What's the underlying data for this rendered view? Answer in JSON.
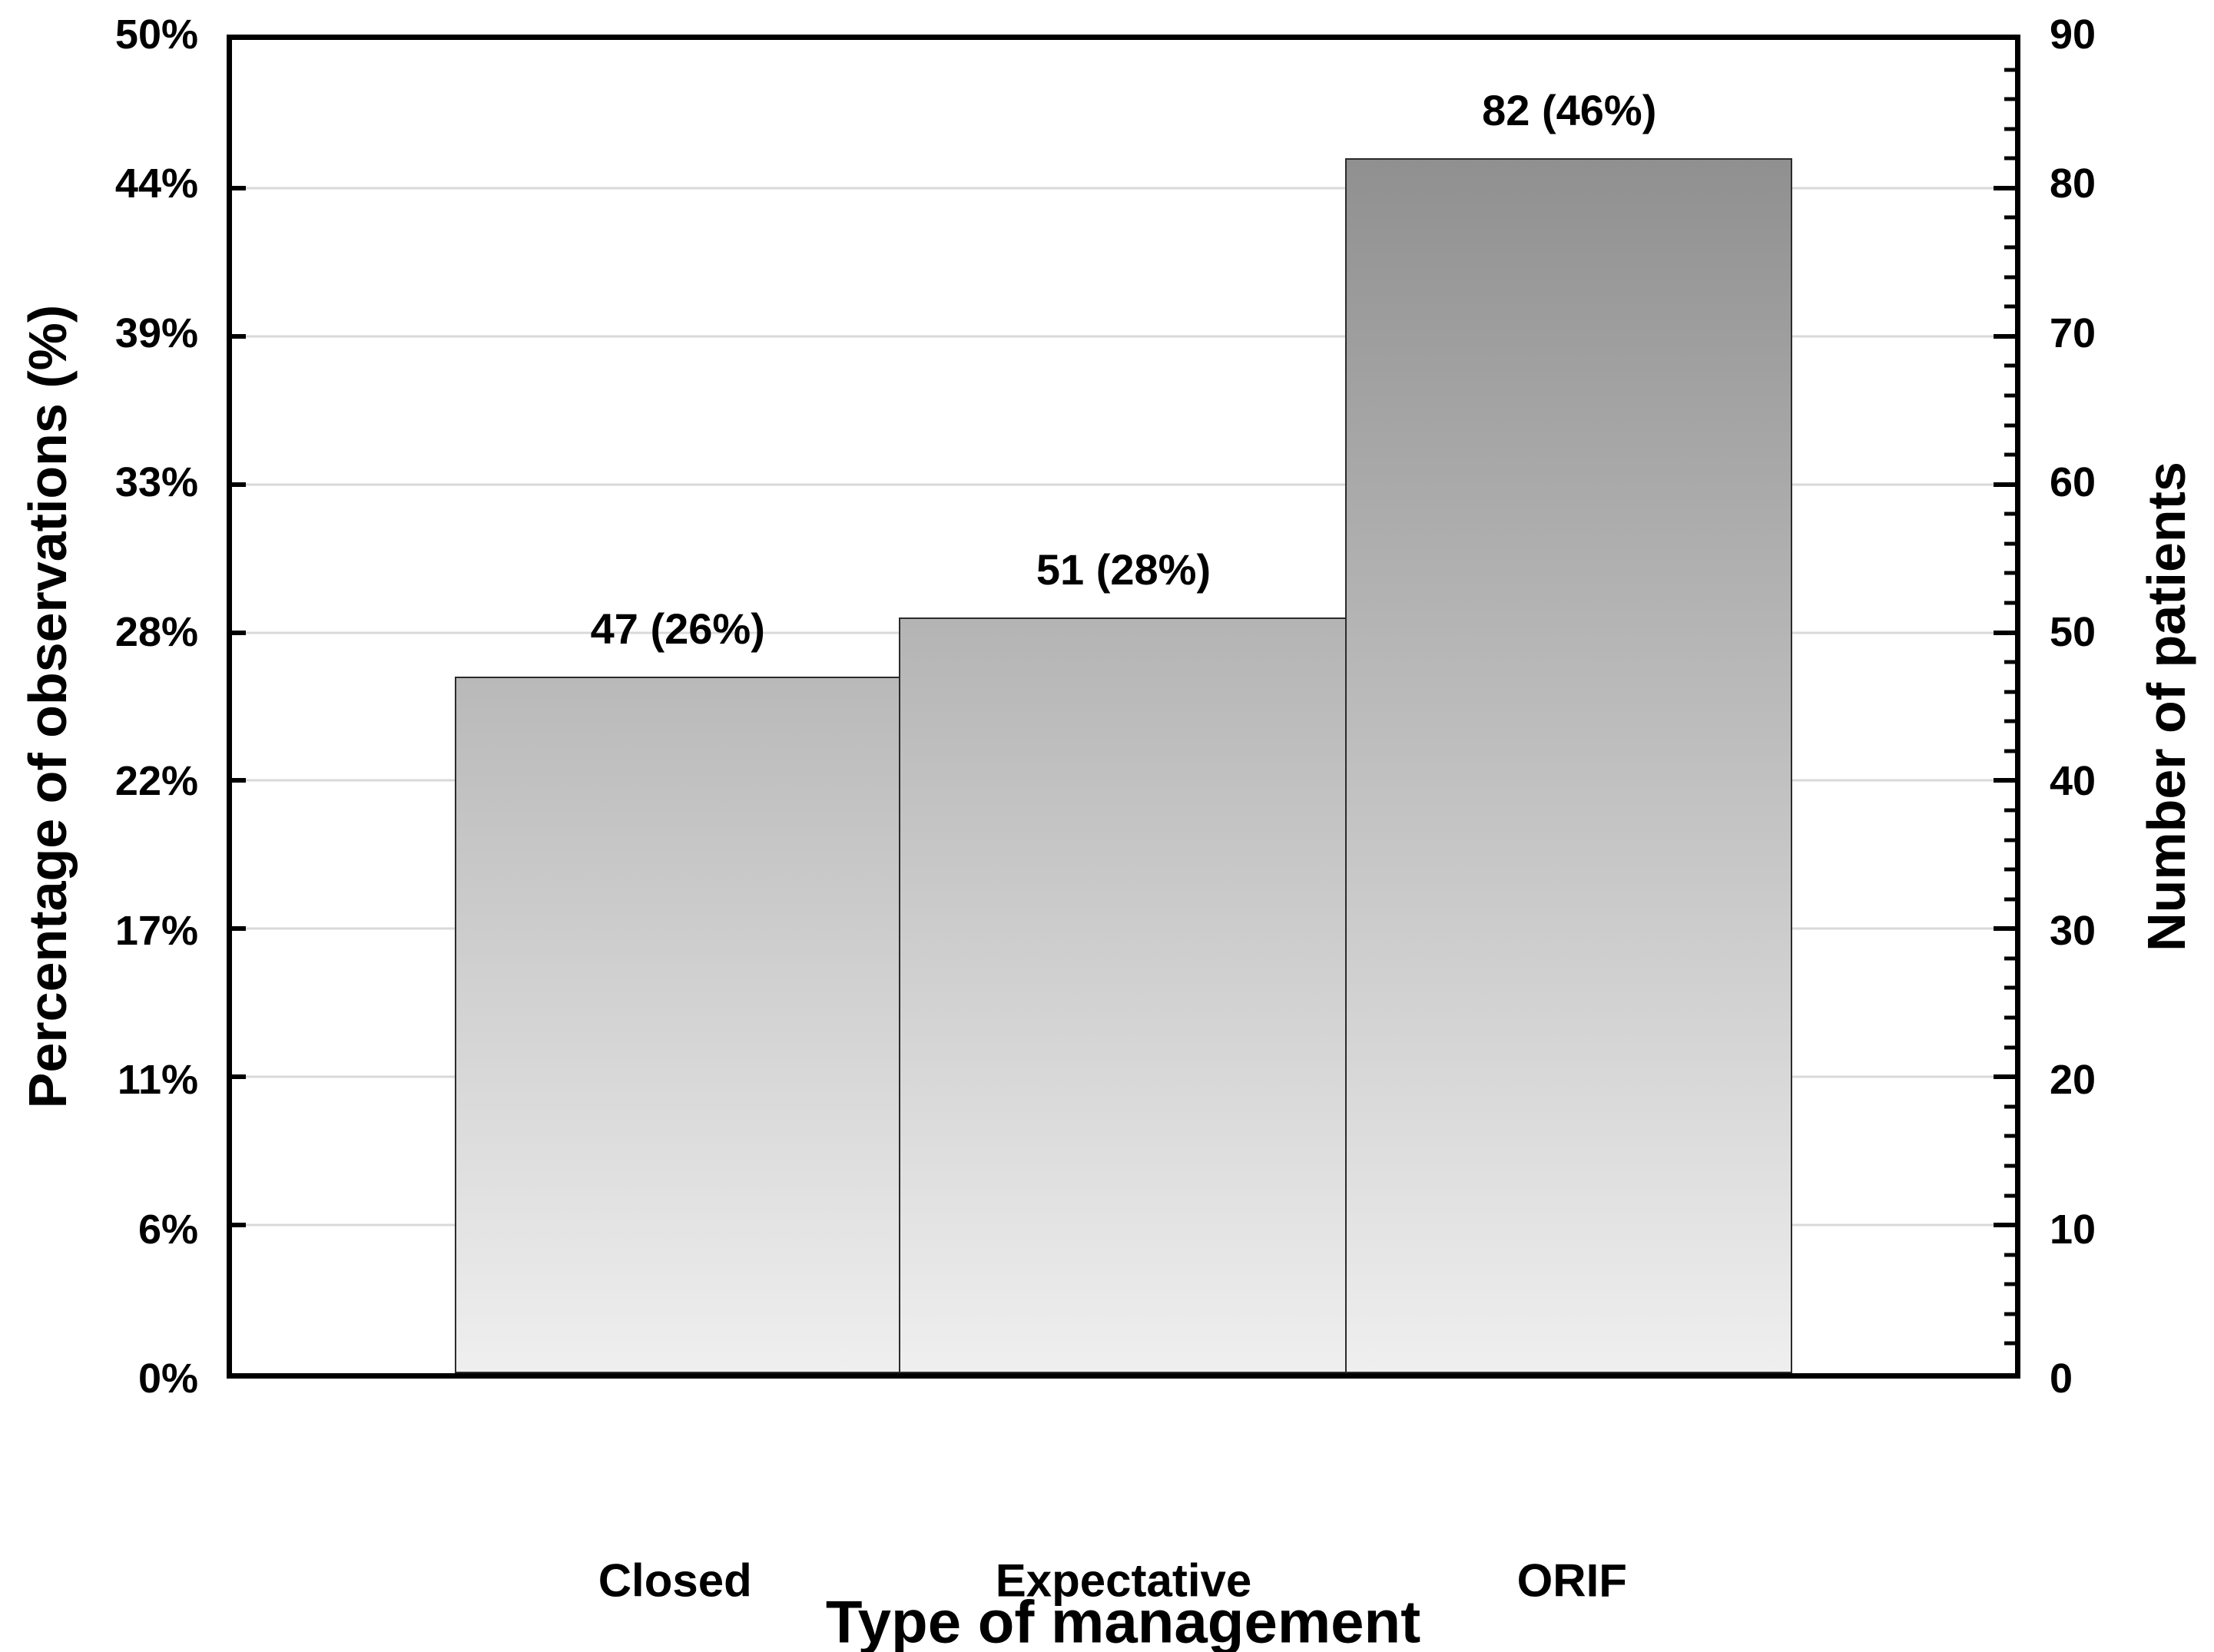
{
  "chart_data": {
    "type": "bar",
    "categories": [
      "Closed",
      "Expectative",
      "ORIF"
    ],
    "values": [
      47,
      51,
      82
    ],
    "percents": [
      26,
      28,
      46
    ],
    "value_labels": [
      "47 (26%)",
      "51 (28%)",
      "82 (46%)"
    ],
    "title": "",
    "xlabel": "Type of management",
    "ylabel_left": "Percentage of observations (%)",
    "ylabel_right": "Number of patients",
    "left_axis": {
      "tick_labels": [
        "0%",
        "6%",
        "11%",
        "17%",
        "22%",
        "28%",
        "33%",
        "39%",
        "44%",
        "50%"
      ],
      "range": [
        0,
        50
      ],
      "unit": "percent"
    },
    "right_axis": {
      "tick_labels": [
        "0",
        "10",
        "20",
        "30",
        "40",
        "50",
        "60",
        "70",
        "80",
        "90"
      ],
      "tick_values": [
        0,
        10,
        20,
        30,
        40,
        50,
        60,
        70,
        80,
        90
      ],
      "max": 90,
      "minor_tick_step": 2
    },
    "grid": true,
    "legend_position": "none",
    "layout_hints": {
      "bars_adjacent": true,
      "bar_region_left_fraction": 0.125,
      "bar_region_right_fraction": 0.875,
      "gridlines_at_major_ticks": true,
      "bar_fill": "vertical-gradient-shared-scale"
    },
    "colors": {
      "background": "#ffffff",
      "frame": "#000000",
      "grid": "#d9d9d9",
      "text": "#000000",
      "bar_outline": "#2b2b2b",
      "bar_gradient_top": "#878787",
      "bar_gradient_bottom": "#efefef"
    }
  }
}
